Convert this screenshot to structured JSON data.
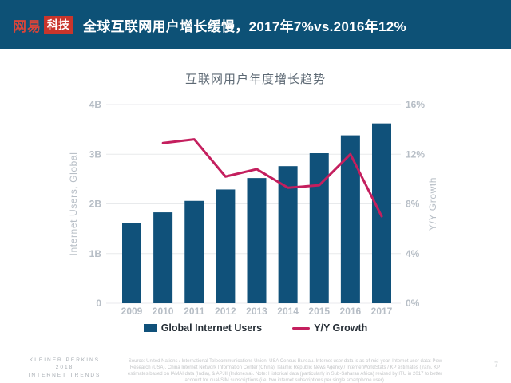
{
  "header": {
    "logo": {
      "brand": "网易",
      "suffix": "科技"
    },
    "title": "全球互联网用户增长缓慢，2017年7%vs.2016年12%",
    "colors": {
      "bg": "#0d5176",
      "logo_red": "#c9352c",
      "logo_brand_text": "#d8453a"
    }
  },
  "chart_data": {
    "type": "bar",
    "title": "互联网用户年度增长趋势",
    "categories": [
      "2009",
      "2010",
      "2011",
      "2012",
      "2013",
      "2014",
      "2015",
      "2016",
      "2017"
    ],
    "series": [
      {
        "name": "Global Internet Users",
        "type": "bar",
        "axis": "left",
        "color": "#10517a",
        "values": [
          1.61,
          1.83,
          2.06,
          2.29,
          2.52,
          2.76,
          3.02,
          3.38,
          3.62
        ]
      },
      {
        "name": "Y/Y Growth",
        "type": "line",
        "axis": "right",
        "color": "#c41f5e",
        "x": [
          "2010",
          "2011",
          "2012",
          "2013",
          "2014",
          "2015",
          "2016",
          "2017"
        ],
        "values": [
          12.9,
          13.2,
          10.2,
          10.8,
          9.3,
          9.5,
          12.0,
          7.0
        ]
      }
    ],
    "left_axis": {
      "label": "Internet Users, Global",
      "ticks": [
        "0",
        "1B",
        "2B",
        "3B",
        "4B"
      ],
      "min": 0,
      "max": 4
    },
    "right_axis": {
      "label": "Y/Y Growth",
      "ticks": [
        "0%",
        "4%",
        "8%",
        "12%",
        "16%"
      ],
      "min": 0,
      "max": 16
    },
    "grid": true,
    "legend_position": "bottom"
  },
  "footer": {
    "brand_lines": [
      "KLEINER PERKINS",
      "2018",
      "INTERNET TRENDS"
    ],
    "source": "Source: United Nations / International Telecommunications Union, USA Census Bureau. Internet user data is as of mid-year. Internet user data: Pew Research (USA), China Internet Network Information Center (China), Islamic Republic News Agency / InternetWorldStats / KP estimates (Iran), KP estimates based on IAMAI data (India), & APJII (Indonesia). Note: Historical data (particularly in Sub-Saharan Africa) revised by ITU in 2017 to better account for dual-SIM subscriptions (i.e. two internet subscriptions per single smartphone user).",
    "page_number": "7"
  }
}
